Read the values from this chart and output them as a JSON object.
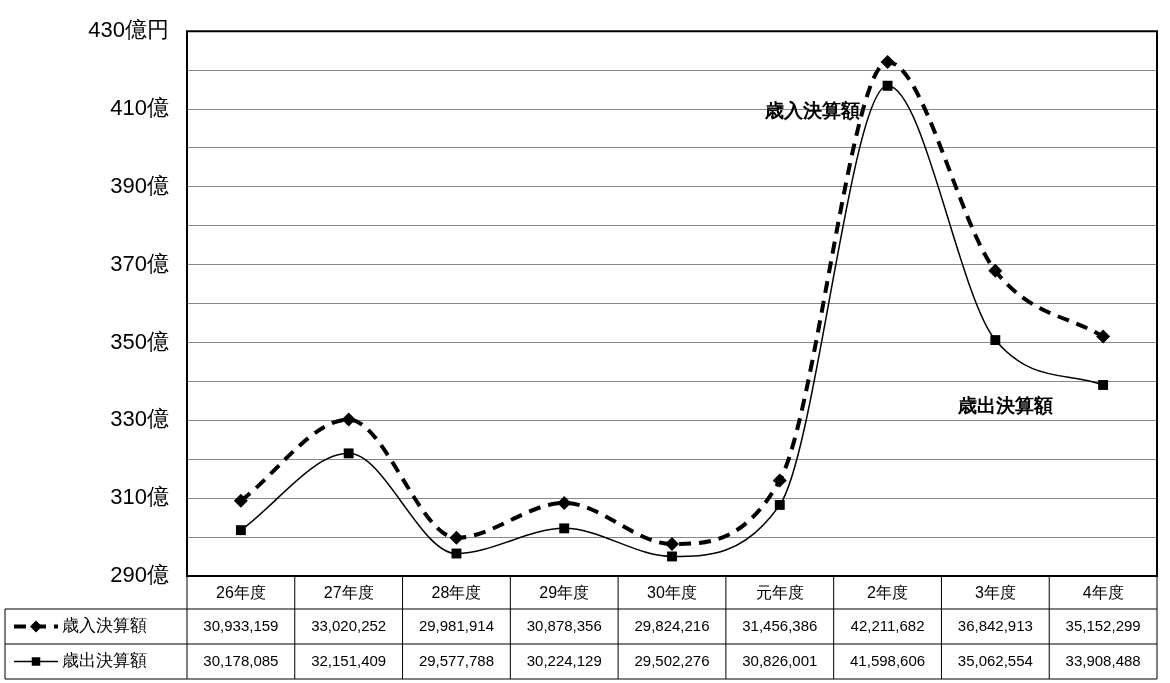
{
  "chart_data": {
    "type": "line",
    "categories": [
      "26年度",
      "27年度",
      "28年度",
      "29年度",
      "30年度",
      "元年度",
      "2年度",
      "3年度",
      "4年度"
    ],
    "series": [
      {
        "name": "歳入決算額",
        "color": "#000000",
        "marker": "diamond",
        "line_style": "dashed",
        "values": [
          309.33159,
          330.20252,
          299.81914,
          308.78356,
          298.24216,
          314.56386,
          422.11682,
          368.42913,
          351.52299
        ]
      },
      {
        "name": "歳出決算額",
        "color": "#000000",
        "marker": "square",
        "line_style": "solid",
        "values": [
          301.78085,
          321.51409,
          295.77788,
          302.24129,
          295.02276,
          308.26001,
          415.98606,
          350.62554,
          339.08488
        ]
      }
    ],
    "annotations": [
      "30,933,159",
      "33,020,252",
      "29,981,914",
      "30,878,356",
      "29,824,216",
      "31,456,386",
      "42,211,682",
      "36,842,913",
      "35,152,299",
      "30,178,085",
      "32,151,409",
      "29,577,788",
      "30,224,129",
      "29,502,276",
      "30,826,001",
      "41,598,606",
      "35,062,554",
      "33,908,488"
    ],
    "ylim": [
      290,
      430
    ],
    "yticks": [
      {
        "value": 290,
        "label": "290億"
      },
      {
        "value": 300,
        "label": null
      },
      {
        "value": 310,
        "label": "310億"
      },
      {
        "value": 320,
        "label": null
      },
      {
        "value": 330,
        "label": "330億"
      },
      {
        "value": 340,
        "label": null
      },
      {
        "value": 350,
        "label": "350億"
      },
      {
        "value": 360,
        "label": null
      },
      {
        "value": 370,
        "label": "370億"
      },
      {
        "value": 380,
        "label": null
      },
      {
        "value": 390,
        "label": "390億"
      },
      {
        "value": 400,
        "label": null
      },
      {
        "value": 410,
        "label": "410億"
      },
      {
        "value": 420,
        "label": null
      },
      {
        "value": 430,
        "label": "430億円"
      }
    ],
    "grid": "y",
    "legend": "bottom"
  }
}
